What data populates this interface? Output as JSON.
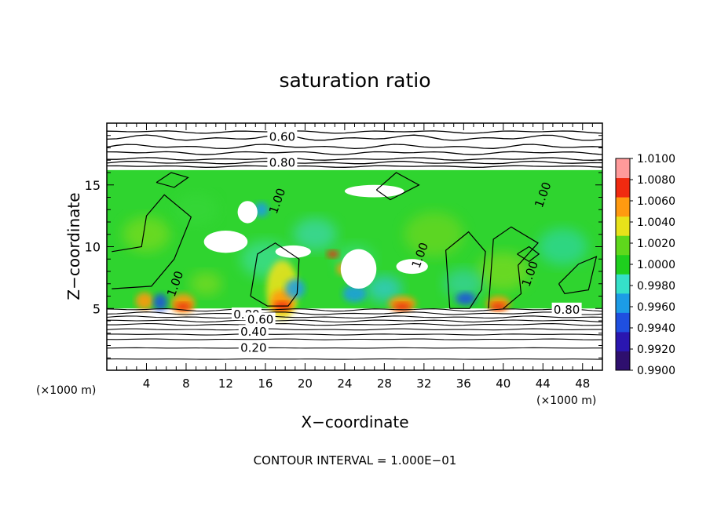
{
  "chart_data": {
    "type": "heatmap",
    "title": "saturation ratio",
    "xlabel": "X−coordinate",
    "ylabel": "Z−coordinate",
    "x_unit_label": "(×1000 m)",
    "y_unit_label": "(×1000 m)",
    "footer": "CONTOUR INTERVAL = 1.000E−01",
    "xlim": [
      0,
      50
    ],
    "ylim": [
      0,
      20
    ],
    "x_ticks": [
      4,
      8,
      12,
      16,
      20,
      24,
      28,
      32,
      36,
      40,
      44,
      48
    ],
    "x_tick_labels": [
      "4",
      "8",
      "12",
      "16",
      "20",
      "24",
      "28",
      "32",
      "36",
      "40",
      "44",
      "48"
    ],
    "y_ticks": [
      5,
      10,
      15
    ],
    "y_tick_labels": [
      "5",
      "10",
      "15"
    ],
    "colorbar": {
      "range": [
        0.99,
        1.01
      ],
      "labels": [
        "1.0100",
        "1.0080",
        "1.0060",
        "1.0040",
        "1.0020",
        "1.0000",
        "0.9980",
        "0.9960",
        "0.9940",
        "0.9920",
        "0.9900"
      ],
      "colors": [
        "#2e0f6e",
        "#2a16b0",
        "#1f4fe0",
        "#1c9ce6",
        "#35e0c9",
        "#1ecf1e",
        "#5fd81c",
        "#e8e21a",
        "#ff9a10",
        "#f02a10",
        "#ff9a9a"
      ]
    },
    "contour_labels": [
      {
        "text": "0.60",
        "x": 17.7,
        "z": 18.9
      },
      {
        "text": "0.80",
        "x": 17.7,
        "z": 16.8
      },
      {
        "text": "1.00",
        "x": 17.2,
        "z": 13.7
      },
      {
        "text": "0.80",
        "x": 14.1,
        "z": 4.5
      },
      {
        "text": "0.60",
        "x": 15.5,
        "z": 4.1
      },
      {
        "text": "0.40",
        "x": 14.8,
        "z": 3.1
      },
      {
        "text": "0.20",
        "x": 14.8,
        "z": 1.8
      },
      {
        "text": "0.80",
        "x": 46.4,
        "z": 4.9
      },
      {
        "text": "1.00",
        "x": 6.9,
        "z": 7.0
      },
      {
        "text": "1.00",
        "x": 31.6,
        "z": 9.3
      },
      {
        "text": "1.00",
        "x": 44.0,
        "z": 14.2
      },
      {
        "text": "1.00",
        "x": 42.7,
        "z": 7.8
      }
    ],
    "regions": {
      "supersaturated_layer_z": [
        5,
        16.2
      ],
      "subsaturated_above_z": [
        16.2,
        20
      ],
      "subsaturated_below_z": [
        0,
        5
      ]
    }
  }
}
